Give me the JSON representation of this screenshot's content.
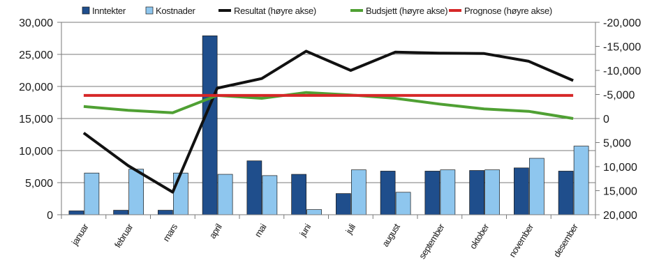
{
  "chart_data": {
    "type": "bar",
    "categories": [
      "januar",
      "februar",
      "mars",
      "april",
      "mai",
      "juni",
      "juli",
      "august",
      "september",
      "oktober",
      "november",
      "desember"
    ],
    "series": [
      {
        "name": "Inntekter",
        "kind": "bar",
        "axis": "left",
        "color": "#1f4e8c",
        "values": [
          600,
          700,
          700,
          27900,
          8400,
          6300,
          3300,
          6800,
          6800,
          6900,
          7300,
          6800
        ]
      },
      {
        "name": "Kostnader",
        "kind": "bar",
        "axis": "left",
        "color": "#8ec6ee",
        "values": [
          6500,
          7100,
          6500,
          6300,
          6100,
          800,
          7000,
          3500,
          7000,
          7000,
          8800,
          10700
        ]
      },
      {
        "name": "Resultat (høyre akse)",
        "kind": "line",
        "axis": "right",
        "color": "#111111",
        "values": [
          3000,
          9800,
          15300,
          -6300,
          -8300,
          -14000,
          -10000,
          -13800,
          -13600,
          -13500,
          -11900,
          -7900
        ]
      },
      {
        "name": "Budsjett (høyre akse)",
        "kind": "line",
        "axis": "right",
        "color": "#4fa033",
        "values": [
          -2500,
          -1700,
          -1200,
          -4800,
          -4200,
          -5400,
          -4900,
          -4200,
          -3000,
          -2000,
          -1500,
          0
        ]
      },
      {
        "name": "Prognose (høyre akse)",
        "kind": "line",
        "axis": "right",
        "color": "#d62728",
        "values": [
          -4800,
          -4800,
          -4800,
          -4800,
          -4800,
          -4800,
          -4800,
          -4800,
          -4800,
          -4800,
          -4800,
          -4800
        ]
      }
    ],
    "yleft": {
      "ylim": [
        0,
        30000
      ],
      "ticks": [
        0,
        5000,
        10000,
        15000,
        20000,
        25000,
        30000
      ],
      "ticklabels": [
        "0",
        "5,000",
        "10,000",
        "15,000",
        "20,000",
        "25,000",
        "30,000"
      ]
    },
    "yright": {
      "ylim": [
        20000,
        -20000
      ],
      "inverted": true,
      "ticks": [
        -20000,
        -15000,
        -10000,
        -5000,
        0,
        5000,
        10000,
        15000,
        20000
      ],
      "ticklabels": [
        "-20,000",
        "-15,000",
        "-10,000",
        "-5,000",
        "0",
        "5,000",
        "10,000",
        "15,000",
        "20,000"
      ]
    },
    "grid": true,
    "legend": "top"
  }
}
